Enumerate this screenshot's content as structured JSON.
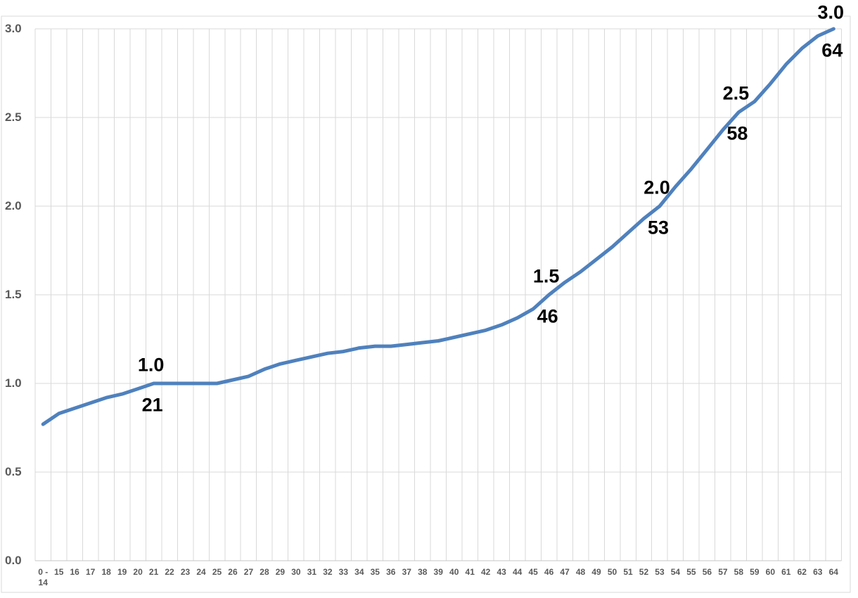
{
  "chart_data": {
    "type": "line",
    "title": "",
    "xlabel": "",
    "ylabel": "",
    "categories": [
      "0 -\n14",
      "15",
      "16",
      "17",
      "18",
      "19",
      "20",
      "21",
      "22",
      "23",
      "24",
      "25",
      "26",
      "27",
      "28",
      "29",
      "30",
      "31",
      "32",
      "33",
      "34",
      "35",
      "36",
      "37",
      "38",
      "39",
      "40",
      "41",
      "42",
      "43",
      "44",
      "45",
      "46",
      "47",
      "48",
      "49",
      "50",
      "51",
      "52",
      "53",
      "54",
      "55",
      "56",
      "57",
      "58",
      "59",
      "60",
      "61",
      "62",
      "63",
      "64"
    ],
    "values": [
      0.77,
      0.83,
      0.86,
      0.89,
      0.92,
      0.94,
      0.97,
      1.0,
      1.0,
      1.0,
      1.0,
      1.0,
      1.02,
      1.04,
      1.08,
      1.11,
      1.13,
      1.15,
      1.17,
      1.18,
      1.2,
      1.21,
      1.21,
      1.22,
      1.23,
      1.24,
      1.26,
      1.28,
      1.3,
      1.33,
      1.37,
      1.42,
      1.5,
      1.57,
      1.63,
      1.7,
      1.77,
      1.85,
      1.93,
      2.0,
      2.11,
      2.21,
      2.32,
      2.43,
      2.53,
      2.59,
      2.69,
      2.8,
      2.89,
      2.96,
      3.0
    ],
    "ylim": [
      0.0,
      3.0
    ],
    "ytick_labels": [
      "0.0",
      "0.5",
      "1.0",
      "1.5",
      "2.0",
      "2.5",
      "3.0"
    ],
    "grid": true,
    "legend": false,
    "annotations": [
      {
        "category": "21",
        "value_label": "1.0",
        "age_label": "21"
      },
      {
        "category": "46",
        "value_label": "1.5",
        "age_label": "46"
      },
      {
        "category": "53",
        "value_label": "2.0",
        "age_label": "53"
      },
      {
        "category": "58",
        "value_label": "2.5",
        "age_label": "58"
      },
      {
        "category": "64",
        "value_label": "3.0",
        "age_label": "64"
      }
    ],
    "colors": {
      "line": "#4F81BD",
      "gridline": "#D9D9D9",
      "border": "#D9D9D9",
      "tick_label": "#595959",
      "annotation": "#000000",
      "background": "#FFFFFF"
    }
  }
}
